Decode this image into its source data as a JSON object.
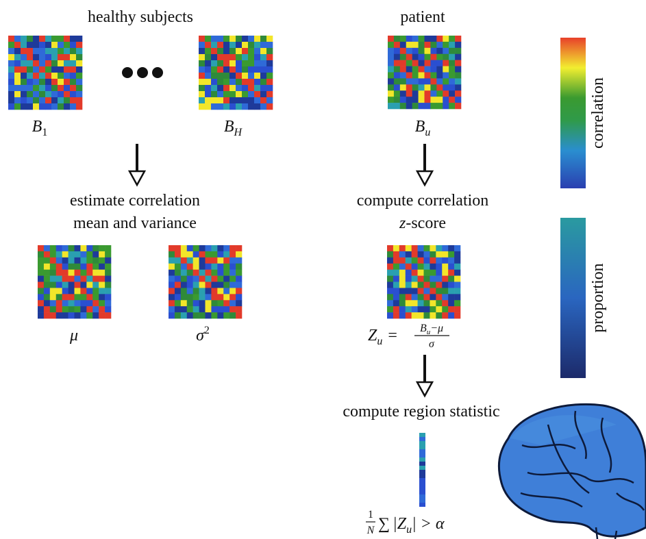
{
  "healthy": {
    "title": "healthy subjects",
    "inputs": [
      {
        "symbol": "B",
        "sub": "1"
      },
      {
        "symbol": "B",
        "sub": "H"
      }
    ],
    "step": [
      "estimate correlation",
      "mean and variance"
    ],
    "outputs": [
      {
        "symbol": "μ"
      },
      {
        "symbol": "σ",
        "sup": "2"
      }
    ]
  },
  "patient": {
    "title": "patient",
    "input": {
      "symbol": "B",
      "sub": "u"
    },
    "step": [
      "compute correlation",
      {
        "var": "z",
        "text": "-score"
      }
    ],
    "zscore": {
      "lhs": "Z",
      "lhs_sub": "u",
      "eq": "=",
      "num": "B",
      "num_sub": "u",
      "num_rest": "−μ",
      "den": "σ"
    },
    "region_step": "compute region statistic",
    "statistic": {
      "frac_num": "1",
      "frac_den": "N",
      "sum": "∑",
      "open": "|Z",
      "sub": "u",
      "close": "| > α"
    }
  },
  "colorbars": [
    "correlation",
    "proportion"
  ]
}
